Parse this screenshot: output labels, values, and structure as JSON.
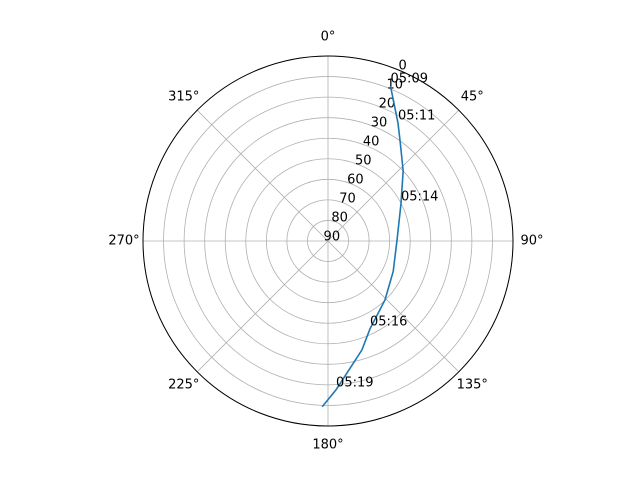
{
  "chart_data": {
    "type": "polar",
    "theta_zero": "N",
    "theta_direction": "clockwise",
    "rlim": [
      90,
      0
    ],
    "rticks": [
      0,
      10,
      20,
      30,
      40,
      50,
      60,
      70,
      80,
      90
    ],
    "rlabel_angle": 22.5,
    "thetaticks": [
      {
        "value": 0,
        "label": "0°"
      },
      {
        "value": 45,
        "label": "45°"
      },
      {
        "value": 90,
        "label": "90°"
      },
      {
        "value": 135,
        "label": "135°"
      },
      {
        "value": 180,
        "label": "180°"
      },
      {
        "value": 225,
        "label": "225°"
      },
      {
        "value": 270,
        "label": "270°"
      },
      {
        "value": 315,
        "label": "315°"
      }
    ],
    "grid": true,
    "series": [
      {
        "color": "#1f77b4",
        "theta": [
          22,
          30.7,
          35.5,
          47,
          63.1,
          89,
          115,
          136,
          154.5,
          162.7,
          176.9,
          182
        ],
        "r": [
          8.8,
          23.3,
          29.7,
          40,
          50.2,
          56.4,
          55,
          50.1,
          42.6,
          34.5,
          17.5,
          9.3
        ]
      }
    ],
    "annotations": [
      {
        "text": "05:09",
        "theta": 22,
        "r": 8.8
      },
      {
        "text": "05:11",
        "theta": 30.7,
        "r": 23.3
      },
      {
        "text": "05:14",
        "theta": 63.1,
        "r": 50.2
      },
      {
        "text": "05:16",
        "theta": 154.5,
        "r": 42.6
      },
      {
        "text": "05:19",
        "theta": 176.9,
        "r": 17.5
      }
    ]
  }
}
